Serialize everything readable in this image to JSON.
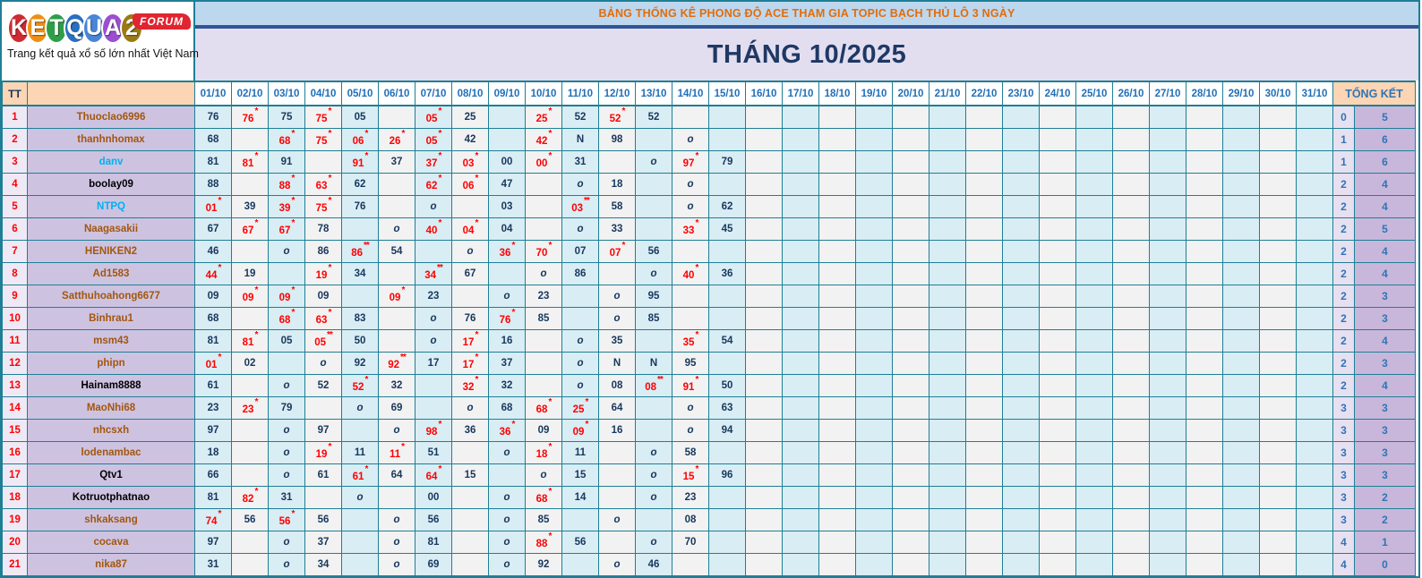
{
  "logo": {
    "letters": [
      {
        "ch": "K",
        "color": "#d02a32"
      },
      {
        "ch": "E",
        "color": "#ee8f13"
      },
      {
        "ch": "T",
        "color": "#2f9e49"
      },
      {
        "ch": "Q",
        "color": "#2a6fc0"
      },
      {
        "ch": "U",
        "color": "#4a85d6"
      },
      {
        "ch": "A",
        "color": "#9b4fd0"
      },
      {
        "ch": "2",
        "color": "#9a7a16"
      }
    ],
    "forum_badge": "FORUM",
    "tagline": "Trang kết quả xổ số lớn nhất Việt Nam"
  },
  "banner": {
    "title": "BẢNG THỐNG KÊ PHONG ĐỘ ACE THAM GIA TOPIC BẠCH THỦ LÔ 3 NGÀY"
  },
  "month": {
    "title": "THÁNG 10/2025"
  },
  "colors": {
    "grid": "#1e7f95",
    "cell_blue": "#d9edf4",
    "cell_gray": "#f2f2f2",
    "name_bg": "#cdc3e1",
    "tt_bg": "#efe9f6",
    "header_peach": "#fcd5b4",
    "banner_bg": "#bdd7ee",
    "banner_text": "#e36c09",
    "month_bg": "#e2def0",
    "navy_text": "#17375d",
    "red_text": "#fe0000",
    "summary_text": "#2e75b6"
  },
  "table": {
    "tt_header": "TT",
    "name_header": "",
    "summary_header": "TỔNG KẾT",
    "dates": [
      "01/10",
      "02/10",
      "03/10",
      "04/10",
      "05/10",
      "06/10",
      "07/10",
      "08/10",
      "09/10",
      "10/10",
      "11/10",
      "12/10",
      "13/10",
      "14/10",
      "15/10",
      "16/10",
      "17/10",
      "18/10",
      "19/10",
      "20/10",
      "21/10",
      "22/10",
      "23/10",
      "24/10",
      "25/10",
      "26/10",
      "27/10",
      "28/10",
      "29/10",
      "30/10",
      "31/10"
    ],
    "rows": [
      {
        "tt": "1",
        "name": "Thuoclao6996",
        "name_color": "brown",
        "cells": [
          "76",
          "76*",
          "75",
          "75*",
          "05",
          "",
          "05*",
          "25",
          "",
          "25*",
          "52",
          "52*",
          "52",
          "",
          ""
        ],
        "total1": "0",
        "total2": "5"
      },
      {
        "tt": "2",
        "name": "thanhnhomax",
        "name_color": "brown",
        "cells": [
          "68",
          "",
          "68*",
          "75*",
          "06*",
          "26*",
          "05*",
          "42",
          "",
          "42*",
          "N",
          "98",
          "",
          "o",
          ""
        ],
        "total1": "1",
        "total2": "6"
      },
      {
        "tt": "3",
        "name": "danv",
        "name_color": "cyan",
        "cells": [
          "81",
          "81*",
          "91",
          "",
          "91*",
          "37",
          "37*",
          "03*",
          "00",
          "00*",
          "31",
          "",
          "o",
          "97*",
          "79"
        ],
        "total1": "1",
        "total2": "6"
      },
      {
        "tt": "4",
        "name": "boolay09",
        "name_color": "black",
        "cells": [
          "88",
          "",
          "88*",
          "63*",
          "62",
          "",
          "62*",
          "06*",
          "47",
          "",
          "o",
          "18",
          "",
          "o",
          ""
        ],
        "total1": "2",
        "total2": "4"
      },
      {
        "tt": "5",
        "name": "NTPQ",
        "name_color": "cyan",
        "cells": [
          "01*",
          "39",
          "39*",
          "75*",
          "76",
          "",
          "o",
          "",
          "03",
          "",
          "03**",
          "58",
          "",
          "o",
          "62"
        ],
        "total1": "2",
        "total2": "4"
      },
      {
        "tt": "6",
        "name": "Naagasakii",
        "name_color": "brown",
        "cells": [
          "67",
          "67*",
          "67*",
          "78",
          "",
          "o",
          "40*",
          "04*",
          "04",
          "",
          "o",
          "33",
          "",
          "33*",
          "45"
        ],
        "total1": "2",
        "total2": "5"
      },
      {
        "tt": "7",
        "name": "HENIKEN2",
        "name_color": "brown",
        "cells": [
          "46",
          "",
          "o",
          "86",
          "86**",
          "54",
          "",
          "o",
          "36*",
          "70*",
          "07",
          "07*",
          "56",
          "",
          ""
        ],
        "total1": "2",
        "total2": "4"
      },
      {
        "tt": "8",
        "name": "Ad1583",
        "name_color": "brown",
        "cells": [
          "44*",
          "19",
          "",
          "19*",
          "34",
          "",
          "34**",
          "67",
          "",
          "o",
          "86",
          "",
          "o",
          "40*",
          "36"
        ],
        "total1": "2",
        "total2": "4"
      },
      {
        "tt": "9",
        "name": "Satthuhoahong6677",
        "name_color": "brown",
        "cells": [
          "09",
          "09*",
          "09*",
          "09",
          "",
          "09*",
          "23",
          "",
          "o",
          "23",
          "",
          "o",
          "95",
          "",
          ""
        ],
        "total1": "2",
        "total2": "3"
      },
      {
        "tt": "10",
        "name": "Binhrau1",
        "name_color": "brown",
        "cells": [
          "68",
          "",
          "68*",
          "63*",
          "83",
          "",
          "o",
          "76",
          "76*",
          "85",
          "",
          "o",
          "85",
          "",
          ""
        ],
        "total1": "2",
        "total2": "3"
      },
      {
        "tt": "11",
        "name": "msm43",
        "name_color": "brown",
        "cells": [
          "81",
          "81*",
          "05",
          "05**",
          "50",
          "",
          "o",
          "17*",
          "16",
          "",
          "o",
          "35",
          "",
          "35*",
          "54"
        ],
        "total1": "2",
        "total2": "4"
      },
      {
        "tt": "12",
        "name": "phipn",
        "name_color": "brown",
        "cells": [
          "01*",
          "02",
          "",
          "o",
          "92",
          "92**",
          "17",
          "17*",
          "37",
          "",
          "o",
          "N",
          "N",
          "95",
          ""
        ],
        "total1": "2",
        "total2": "3"
      },
      {
        "tt": "13",
        "name": "Hainam8888",
        "name_color": "black",
        "cells": [
          "61",
          "",
          "o",
          "52",
          "52*",
          "32",
          "",
          "32*",
          "32",
          "",
          "o",
          "08",
          "08**",
          "91*",
          "50"
        ],
        "total1": "2",
        "total2": "4"
      },
      {
        "tt": "14",
        "name": "MaoNhi68",
        "name_color": "brown",
        "cells": [
          "23",
          "23*",
          "79",
          "",
          "o",
          "69",
          "",
          "o",
          "68",
          "68*",
          "25*",
          "64",
          "",
          "o",
          "63"
        ],
        "total1": "3",
        "total2": "3"
      },
      {
        "tt": "15",
        "name": "nhcsxh",
        "name_color": "brown",
        "cells": [
          "97",
          "",
          "o",
          "97",
          "",
          "o",
          "98*",
          "36",
          "36*",
          "09",
          "09*",
          "16",
          "",
          "o",
          "94"
        ],
        "total1": "3",
        "total2": "3"
      },
      {
        "tt": "16",
        "name": "lodenambac",
        "name_color": "brown",
        "cells": [
          "18",
          "",
          "o",
          "19*",
          "11",
          "11*",
          "51",
          "",
          "o",
          "18*",
          "11",
          "",
          "o",
          "58",
          ""
        ],
        "total1": "3",
        "total2": "3"
      },
      {
        "tt": "17",
        "name": "Qtv1",
        "name_color": "black",
        "cells": [
          "66",
          "",
          "o",
          "61",
          "61*",
          "64",
          "64*",
          "15",
          "",
          "o",
          "15",
          "",
          "o",
          "15*",
          "96"
        ],
        "total1": "3",
        "total2": "3"
      },
      {
        "tt": "18",
        "name": "Kotruotphatnao",
        "name_color": "black",
        "cells": [
          "81",
          "82*",
          "31",
          "",
          "o",
          "",
          "00",
          "",
          "o",
          "68*",
          "14",
          "",
          "o",
          "23",
          ""
        ],
        "total1": "3",
        "total2": "2"
      },
      {
        "tt": "19",
        "name": "shkaksang",
        "name_color": "brown",
        "cells": [
          "74*",
          "56",
          "56*",
          "56",
          "",
          "o",
          "56",
          "",
          "o",
          "85",
          "",
          "o",
          "",
          "08",
          ""
        ],
        "total1": "3",
        "total2": "2"
      },
      {
        "tt": "20",
        "name": "cocava",
        "name_color": "brown",
        "cells": [
          "97",
          "",
          "o",
          "37",
          "",
          "o",
          "81",
          "",
          "o",
          "88*",
          "56",
          "",
          "o",
          "70",
          ""
        ],
        "total1": "4",
        "total2": "1"
      },
      {
        "tt": "21",
        "name": "nika87",
        "name_color": "brown",
        "cells": [
          "31",
          "",
          "o",
          "34",
          "",
          "o",
          "69",
          "",
          "o",
          "92",
          "",
          "o",
          "46",
          "",
          ""
        ],
        "total1": "4",
        "total2": "0"
      }
    ]
  }
}
